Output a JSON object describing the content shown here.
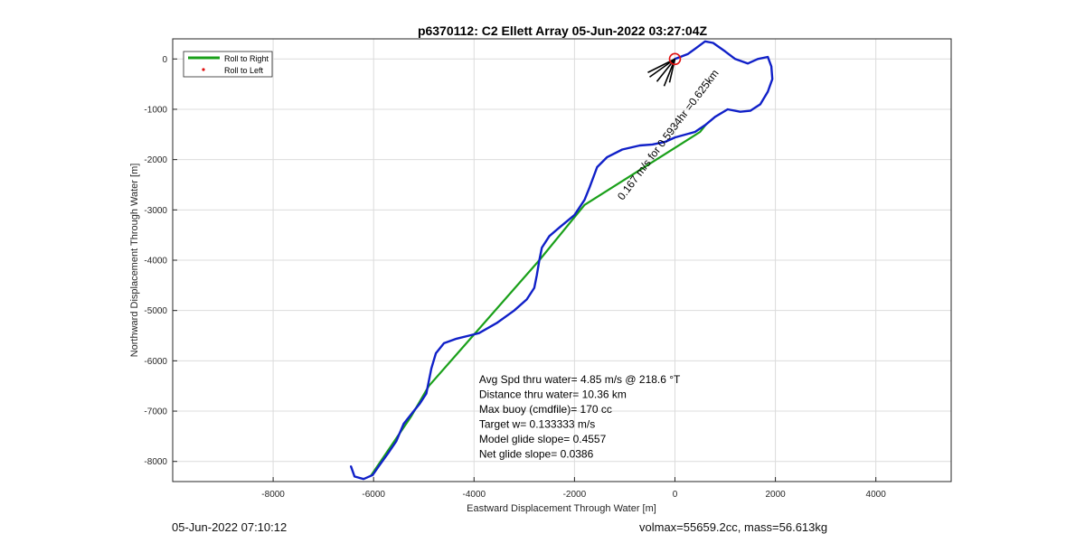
{
  "chart_data": {
    "type": "line",
    "title": "p6370112: C2 Ellett Array 05-Jun-2022 03:27:04Z",
    "xlabel": "Eastward Displacement Through Water [m]",
    "ylabel": "Northward Displacement Through Water [m]",
    "xlim": [
      -10000,
      5500
    ],
    "ylim": [
      -8400,
      400
    ],
    "xticks": [
      -8000,
      -6000,
      -4000,
      -2000,
      0,
      2000,
      4000
    ],
    "yticks": [
      0,
      -1000,
      -2000,
      -3000,
      -4000,
      -5000,
      -6000,
      -7000,
      -8000
    ],
    "grid": true,
    "legend_position": "top-left",
    "legend": [
      {
        "label": "Roll to Right",
        "color": "#1aa01a",
        "marker": "line"
      },
      {
        "label": "Roll to Left",
        "color": "#e01010",
        "marker": "dot"
      }
    ],
    "series": [
      {
        "name": "Roll to Right",
        "color": "#1aa01a",
        "x": [
          -6050,
          -5250,
          -4900,
          -2700,
          -1800,
          500,
          620
        ],
        "y": [
          -8280,
          -7100,
          -6500,
          -4000,
          -2900,
          -1450,
          -1300
        ]
      },
      {
        "name": "path",
        "color": "#1020c8",
        "x": [
          -6450,
          -6380,
          -6200,
          -6020,
          -5900,
          -5720,
          -5550,
          -5400,
          -5200,
          -5080,
          -4950,
          -4900,
          -4850,
          -4760,
          -4600,
          -4350,
          -4100,
          -3900,
          -3550,
          -3200,
          -2950,
          -2800,
          -2750,
          -2700,
          -2650,
          -2500,
          -2300,
          -2000,
          -1800,
          -1700,
          -1550,
          -1350,
          -1050,
          -700,
          -450,
          -200,
          0,
          400,
          620,
          800,
          1050,
          1300,
          1500,
          1700,
          1850,
          1940,
          1920,
          1850,
          1650,
          1450,
          1200,
          1000,
          760,
          600,
          400,
          260,
          0
        ],
        "y": [
          -8100,
          -8300,
          -8350,
          -8270,
          -8100,
          -7850,
          -7600,
          -7250,
          -7000,
          -6850,
          -6650,
          -6400,
          -6150,
          -5850,
          -5650,
          -5560,
          -5500,
          -5450,
          -5250,
          -5000,
          -4780,
          -4550,
          -4300,
          -4000,
          -3750,
          -3520,
          -3350,
          -3100,
          -2800,
          -2550,
          -2150,
          -1950,
          -1800,
          -1720,
          -1700,
          -1650,
          -1560,
          -1450,
          -1300,
          -1150,
          -1000,
          -1050,
          -1030,
          -900,
          -650,
          -400,
          -150,
          40,
          0,
          -90,
          0,
          150,
          320,
          350,
          200,
          100,
          0
        ]
      }
    ],
    "start_marker": {
      "x": 0,
      "y": 0,
      "color": "#e01010"
    },
    "annotations": {
      "stats": [
        "Avg Spd thru water=  4.85 m/s @ 218.6 °T",
        "Distance thru water= 10.36 km",
        "Max buoy (cmdfile)= 170 cc",
        "Target w= 0.133333 m/s",
        "Model glide slope= 0.4557",
        "Net glide slope= 0.0386"
      ],
      "rotated_label": "0.167 m/s for 0.5934hr =0.625km",
      "rotated_label_angle_deg": -53,
      "rotated_label_anchor": {
        "x": -1040,
        "y": -2820
      }
    }
  },
  "footer": {
    "left": "05-Jun-2022 07:10:12",
    "right": "volmax=55659.2cc, mass=56.613kg"
  }
}
